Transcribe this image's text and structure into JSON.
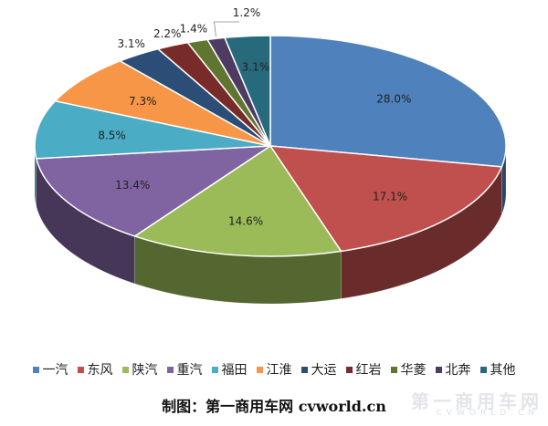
{
  "chart_data": {
    "type": "pie",
    "style": "3d",
    "categories": [
      "一汽",
      "东风",
      "陕汽",
      "重汽",
      "福田",
      "江淮",
      "大运",
      "红岩",
      "华菱",
      "北奔",
      "其他"
    ],
    "values": [
      28.0,
      17.1,
      14.6,
      13.4,
      8.5,
      7.3,
      3.1,
      2.2,
      1.4,
      1.2,
      3.1
    ],
    "labels": [
      "28.0%",
      "17.1%",
      "14.6%",
      "13.4%",
      "8.5%",
      "7.3%",
      "3.1%",
      "2.2%",
      "1.4%",
      "1.2%",
      "3.1%"
    ],
    "colors": [
      "#4F81BD",
      "#C0504D",
      "#9BBB59",
      "#8064A2",
      "#4BACC6",
      "#F79646",
      "#2C4D75",
      "#772C2A",
      "#5F7530",
      "#4D3B62",
      "#276A7C"
    ],
    "legend_position": "bottom",
    "source": "制图：第一商用车网  cvworld.cn"
  },
  "watermark": {
    "text": "第一商用车网",
    "sub": "CVWORLD.CN"
  }
}
